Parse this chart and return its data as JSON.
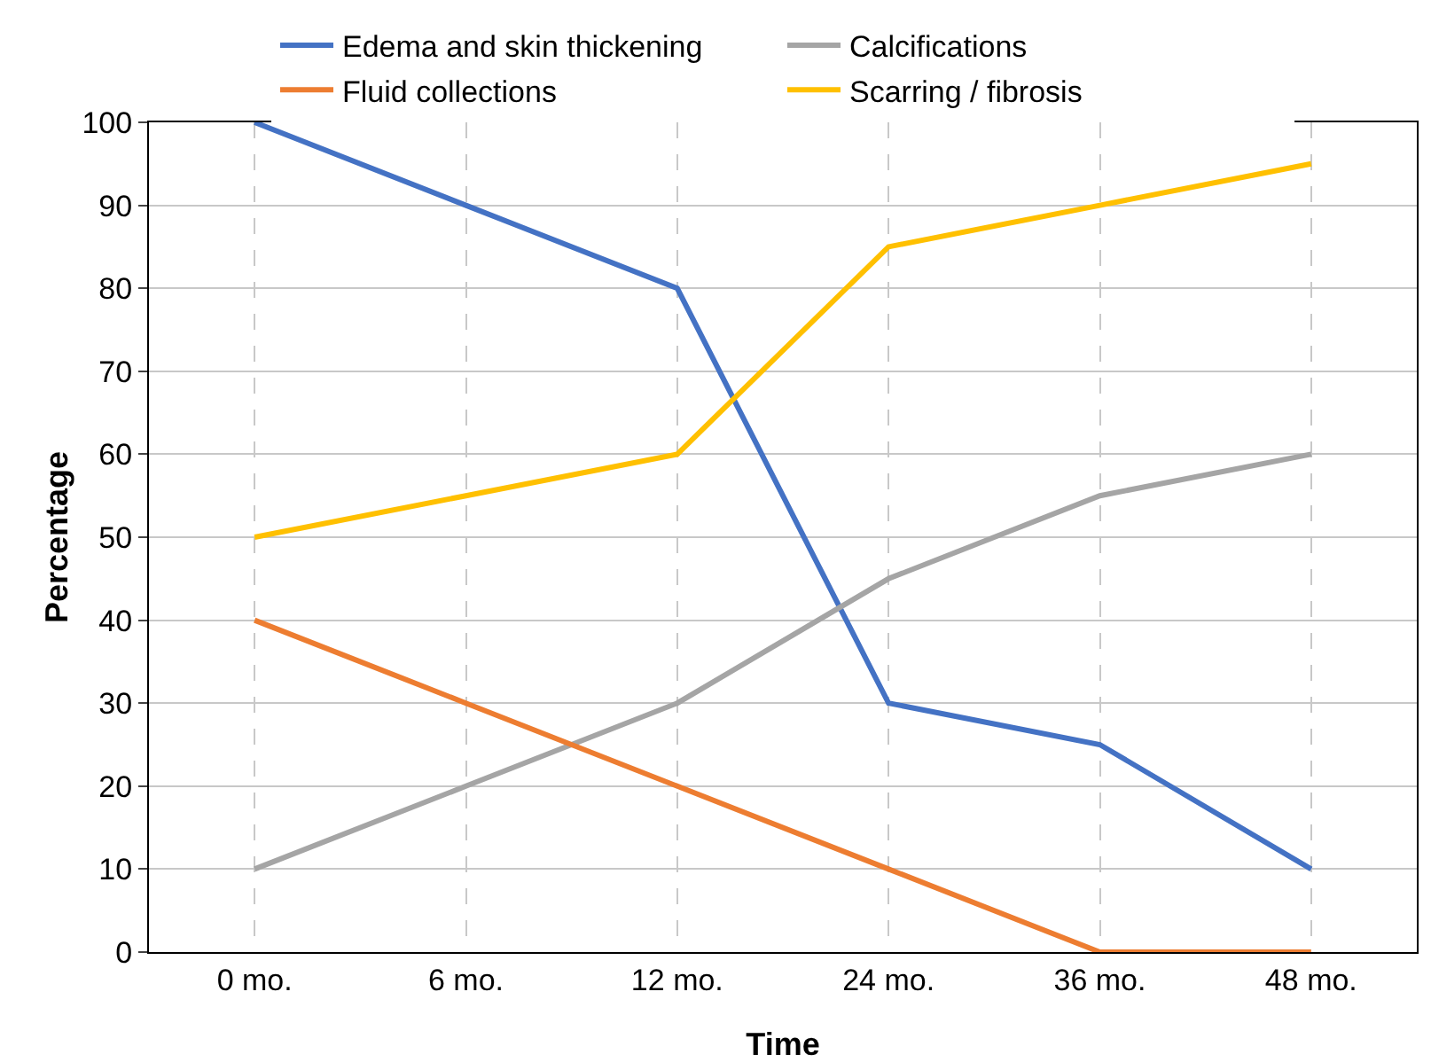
{
  "chart_data": {
    "type": "line",
    "xlabel": "Time",
    "ylabel": "Percentage",
    "categories": [
      "0 mo.",
      "6 mo.",
      "12 mo.",
      "24 mo.",
      "36 mo.",
      "48 mo."
    ],
    "series": [
      {
        "name": "Edema and skin thickening",
        "color": "#4472c4",
        "values": [
          100,
          90,
          80,
          30,
          25,
          10
        ]
      },
      {
        "name": "Calcifications",
        "color": "#a5a5a5",
        "values": [
          10,
          20,
          30,
          45,
          55,
          60
        ]
      },
      {
        "name": "Fluid collections",
        "color": "#ed7d31",
        "values": [
          40,
          30,
          20,
          10,
          0,
          0
        ]
      },
      {
        "name": "Scarring / fibrosis",
        "color": "#ffc000",
        "values": [
          50,
          55,
          60,
          85,
          90,
          95
        ]
      }
    ],
    "ylim": [
      0,
      100
    ],
    "yticks": [
      0,
      10,
      20,
      30,
      40,
      50,
      60,
      70,
      80,
      90,
      100
    ],
    "grid": true,
    "legend": "top",
    "marker": "none",
    "line_style": "solid"
  }
}
